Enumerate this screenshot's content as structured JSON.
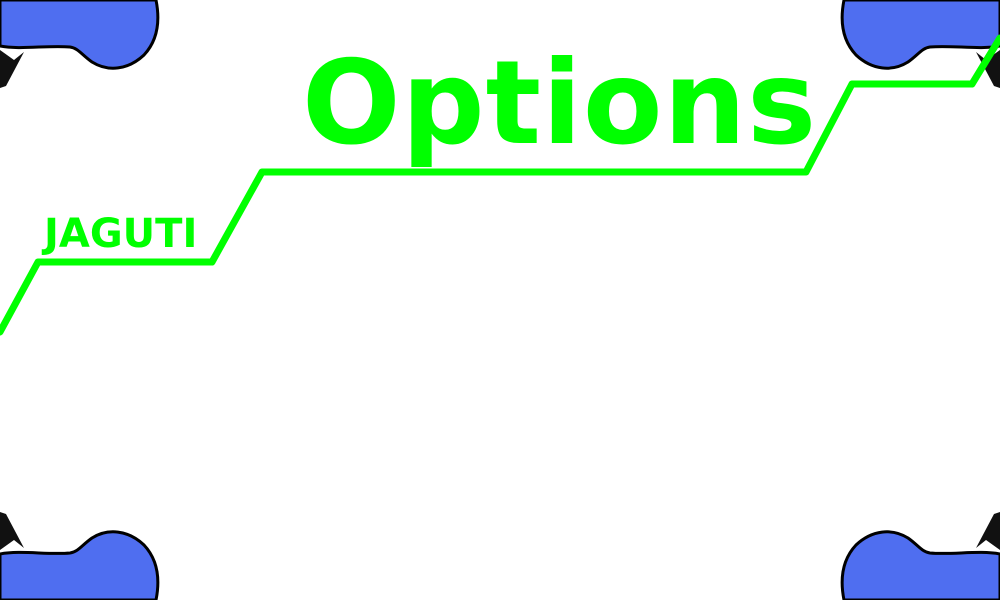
{
  "menu": {
    "title": "Options",
    "brand": "JAGUTI"
  },
  "colors": {
    "accent": "#00ff00",
    "mascot_fill": "#4f6ef0",
    "mascot_outline": "#000000",
    "background": "#ffffff"
  },
  "decorations": {
    "corner_icon": "mascot-icon"
  }
}
